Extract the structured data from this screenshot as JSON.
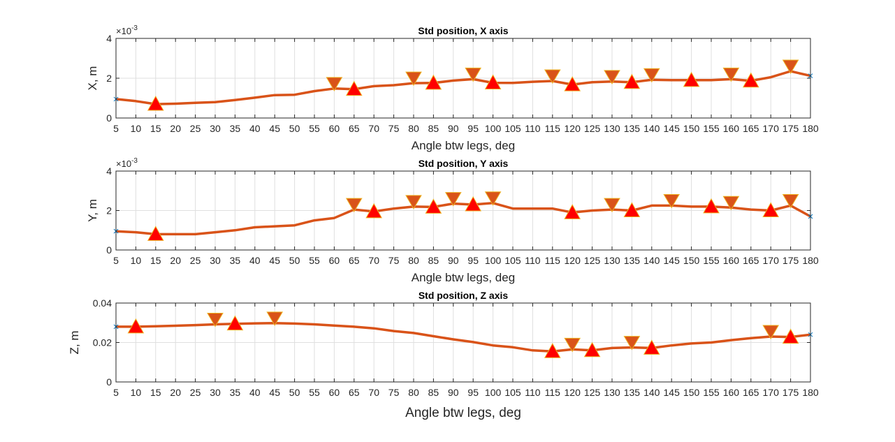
{
  "chart_data": [
    {
      "type": "line",
      "title": "Std position, X axis",
      "xlabel": "Angle btw legs, deg",
      "ylabel": "X, m",
      "y_exponent_label": "×10",
      "y_exponent": "-3",
      "xlim": [
        5,
        180
      ],
      "ylim": [
        0,
        4
      ],
      "xticks": [
        5,
        10,
        15,
        20,
        25,
        30,
        35,
        40,
        45,
        50,
        55,
        60,
        65,
        70,
        75,
        80,
        85,
        90,
        95,
        100,
        105,
        110,
        115,
        120,
        125,
        130,
        135,
        140,
        145,
        150,
        155,
        160,
        165,
        170,
        175,
        180
      ],
      "yticks": [
        0,
        2,
        4
      ],
      "ytick_labels": [
        "0",
        "2",
        "4"
      ],
      "grid": true,
      "line_color": "#D95319",
      "series": [
        {
          "x": [
            5,
            10,
            15,
            20,
            25,
            30,
            35,
            40,
            45,
            50,
            55,
            60,
            65,
            70,
            75,
            80,
            85,
            90,
            95,
            100,
            105,
            110,
            115,
            120,
            125,
            130,
            135,
            140,
            145,
            150,
            155,
            160,
            165,
            170,
            175,
            180
          ],
          "y": [
            0.95,
            0.85,
            0.7,
            0.72,
            0.76,
            0.8,
            0.9,
            1.02,
            1.15,
            1.17,
            1.35,
            1.48,
            1.45,
            1.6,
            1.65,
            1.75,
            1.76,
            1.88,
            1.95,
            1.77,
            1.76,
            1.82,
            1.86,
            1.68,
            1.8,
            1.83,
            1.8,
            1.92,
            1.9,
            1.9,
            1.9,
            1.95,
            1.87,
            2.05,
            2.35,
            2.12
          ]
        }
      ],
      "peaks_x": [
        60,
        80,
        95,
        115,
        130,
        140,
        160,
        175
      ],
      "valleys_x": [
        15,
        65,
        85,
        100,
        120,
        135,
        150,
        165
      ]
    },
    {
      "type": "line",
      "title": "Std position, Y axis",
      "xlabel": "Angle btw legs, deg",
      "ylabel": "Y, m",
      "y_exponent_label": "×10",
      "y_exponent": "-3",
      "xlim": [
        5,
        180
      ],
      "ylim": [
        0,
        4
      ],
      "xticks": [
        5,
        10,
        15,
        20,
        25,
        30,
        35,
        40,
        45,
        50,
        55,
        60,
        65,
        70,
        75,
        80,
        85,
        90,
        95,
        100,
        105,
        110,
        115,
        120,
        125,
        130,
        135,
        140,
        145,
        150,
        155,
        160,
        165,
        170,
        175,
        180
      ],
      "yticks": [
        0,
        2,
        4
      ],
      "ytick_labels": [
        "0",
        "2",
        "4"
      ],
      "grid": true,
      "line_color": "#D95319",
      "series": [
        {
          "x": [
            5,
            10,
            15,
            20,
            25,
            30,
            35,
            40,
            45,
            50,
            55,
            60,
            65,
            70,
            75,
            80,
            85,
            90,
            95,
            100,
            105,
            110,
            115,
            120,
            125,
            130,
            135,
            140,
            145,
            150,
            155,
            160,
            165,
            170,
            175,
            180
          ],
          "y": [
            0.95,
            0.9,
            0.8,
            0.8,
            0.8,
            0.9,
            1.0,
            1.15,
            1.2,
            1.25,
            1.5,
            1.62,
            2.05,
            1.95,
            2.1,
            2.2,
            2.18,
            2.35,
            2.3,
            2.38,
            2.1,
            2.1,
            2.1,
            1.9,
            2.0,
            2.05,
            2.0,
            2.25,
            2.25,
            2.2,
            2.2,
            2.15,
            2.05,
            2.0,
            2.25,
            1.7
          ]
        }
      ],
      "peaks_x": [
        65,
        80,
        90,
        100,
        130,
        145,
        160,
        175
      ],
      "valleys_x": [
        15,
        70,
        85,
        95,
        120,
        135,
        155,
        170
      ]
    },
    {
      "type": "line",
      "title": "Std position, Z axis",
      "xlabel": "Angle btw legs, deg",
      "ylabel": "Z, m",
      "xlim": [
        5,
        180
      ],
      "ylim": [
        0,
        0.04
      ],
      "xticks": [
        5,
        10,
        15,
        20,
        25,
        30,
        35,
        40,
        45,
        50,
        55,
        60,
        65,
        70,
        75,
        80,
        85,
        90,
        95,
        100,
        105,
        110,
        115,
        120,
        125,
        130,
        135,
        140,
        145,
        150,
        155,
        160,
        165,
        170,
        175,
        180
      ],
      "yticks": [
        0,
        0.02,
        0.04
      ],
      "ytick_labels": [
        "0",
        "0.02",
        "0.04"
      ],
      "grid": true,
      "line_color": "#D95319",
      "series": [
        {
          "x": [
            5,
            10,
            15,
            20,
            25,
            30,
            35,
            40,
            45,
            50,
            55,
            60,
            65,
            70,
            75,
            80,
            85,
            90,
            95,
            100,
            105,
            110,
            115,
            120,
            125,
            130,
            135,
            140,
            145,
            150,
            155,
            160,
            165,
            170,
            175,
            180
          ],
          "y": [
            0.028,
            0.028,
            0.0282,
            0.0285,
            0.0288,
            0.0292,
            0.0295,
            0.0297,
            0.0298,
            0.0296,
            0.0292,
            0.0286,
            0.028,
            0.0272,
            0.0258,
            0.0248,
            0.0232,
            0.0216,
            0.0202,
            0.0185,
            0.0176,
            0.016,
            0.0155,
            0.0165,
            0.016,
            0.0172,
            0.0175,
            0.0172,
            0.0185,
            0.0195,
            0.02,
            0.0212,
            0.0222,
            0.023,
            0.0228,
            0.024
          ]
        }
      ],
      "peaks_x": [
        30,
        45,
        120,
        135,
        170
      ],
      "valleys_x": [
        10,
        35,
        115,
        125,
        140,
        175
      ]
    }
  ]
}
